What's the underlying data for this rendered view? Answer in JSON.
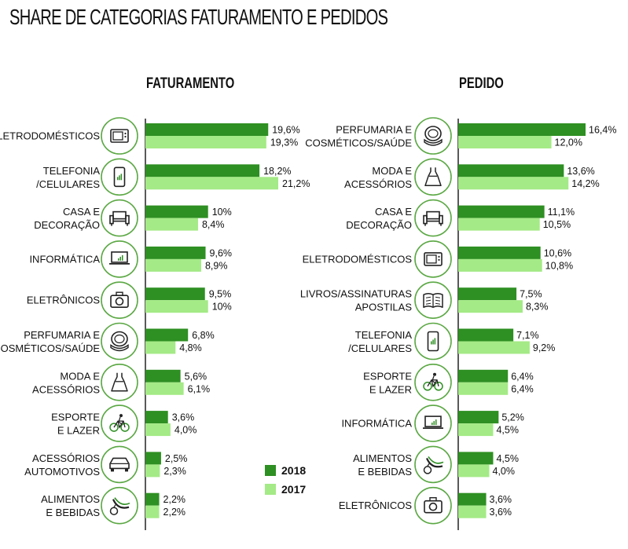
{
  "title": "SHARE DE CATEGORIAS FATURAMENTO  E PEDIDOS",
  "colors": {
    "2018": "#2e8f22",
    "2017": "#a4ea86",
    "icon": "#5ba844",
    "axis": "#222222"
  },
  "legend": [
    {
      "label": "2018",
      "color": "#2e8f22"
    },
    {
      "label": "2017",
      "color": "#a4ea86"
    }
  ],
  "chart_data": [
    {
      "type": "bar",
      "orientation": "horizontal",
      "title": "FATURAMENTO",
      "series_names": [
        "2018",
        "2017"
      ],
      "xlim": [
        0,
        25
      ],
      "categories": [
        {
          "lines": [
            "ELETRODOMÉSTICOS"
          ],
          "icon": "microwave-icon",
          "v2018": 19.6,
          "v2017": 19.3,
          "l2018": "19,6%",
          "l2017": "19,3%"
        },
        {
          "lines": [
            "TELEFONIA",
            "/CELULARES"
          ],
          "icon": "smartphone-icon",
          "v2018": 18.2,
          "v2017": 21.2,
          "l2018": "18,2%",
          "l2017": "21,2%"
        },
        {
          "lines": [
            "CASA E",
            "DECORAÇÃO"
          ],
          "icon": "sofa-icon",
          "v2018": 10,
          "v2017": 8.4,
          "l2018": "10%",
          "l2017": "8,4%"
        },
        {
          "lines": [
            "INFORMÁTICA"
          ],
          "icon": "laptop-icon",
          "v2018": 9.6,
          "v2017": 8.9,
          "l2018": "9,6%",
          "l2017": "8,9%"
        },
        {
          "lines": [
            "ELETRÔNICOS"
          ],
          "icon": "camera-icon",
          "v2018": 9.5,
          "v2017": 10,
          "l2018": "9,5%",
          "l2017": "10%"
        },
        {
          "lines": [
            "PERFUMARIA E",
            "COSMÉTICOS/SAÚDE"
          ],
          "icon": "compact-mirror-icon",
          "v2018": 6.8,
          "v2017": 4.8,
          "l2018": "6,8%",
          "l2017": "4,8%"
        },
        {
          "lines": [
            "MODA E",
            "ACESSÓRIOS"
          ],
          "icon": "dress-icon",
          "v2018": 5.6,
          "v2017": 6.1,
          "l2018": "5,6%",
          "l2017": "6,1%"
        },
        {
          "lines": [
            "ESPORTE",
            "E LAZER"
          ],
          "icon": "bicycle-icon",
          "v2018": 3.6,
          "v2017": 4.0,
          "l2018": "3,6%",
          "l2017": "4,0%"
        },
        {
          "lines": [
            "ACESSÓRIOS",
            "AUTOMOTIVOS"
          ],
          "icon": "car-icon",
          "v2018": 2.5,
          "v2017": 2.3,
          "l2018": "2,5%",
          "l2017": "2,3%"
        },
        {
          "lines": [
            "ALIMENTOS",
            "E BEBIDAS"
          ],
          "icon": "fruits-icon",
          "v2018": 2.2,
          "v2017": 2.2,
          "l2018": "2,2%",
          "l2017": "2,2%"
        }
      ]
    },
    {
      "type": "bar",
      "orientation": "horizontal",
      "title": "PEDIDO",
      "series_names": [
        "2018",
        "2017"
      ],
      "xlim": [
        0,
        19.5
      ],
      "categories": [
        {
          "lines": [
            "PERFUMARIA E",
            "COSMÉTICOS/SAÚDE"
          ],
          "icon": "compact-mirror-icon",
          "v2018": 16.4,
          "v2017": 12.0,
          "l2018": "16,4%",
          "l2017": "12,0%"
        },
        {
          "lines": [
            "MODA E",
            "ACESSÓRIOS"
          ],
          "icon": "dress-icon",
          "v2018": 13.6,
          "v2017": 14.2,
          "l2018": "13,6%",
          "l2017": "14,2%"
        },
        {
          "lines": [
            "CASA E",
            "DECORAÇÃO"
          ],
          "icon": "sofa-icon",
          "v2018": 11.1,
          "v2017": 10.5,
          "l2018": "11,1%",
          "l2017": "10,5%"
        },
        {
          "lines": [
            "ELETRODOMÉSTICOS"
          ],
          "icon": "microwave-icon",
          "v2018": 10.6,
          "v2017": 10.8,
          "l2018": "10,6%",
          "l2017": "10,8%"
        },
        {
          "lines": [
            "LIVROS/ASSINATURAS",
            "APOSTILAS"
          ],
          "icon": "book-icon",
          "v2018": 7.5,
          "v2017": 8.3,
          "l2018": "7,5%",
          "l2017": "8,3%"
        },
        {
          "lines": [
            "TELEFONIA",
            "/CELULARES"
          ],
          "icon": "smartphone-icon",
          "v2018": 7.1,
          "v2017": 9.2,
          "l2018": "7,1%",
          "l2017": "9,2%"
        },
        {
          "lines": [
            "ESPORTE",
            "E LAZER"
          ],
          "icon": "bicycle-icon",
          "v2018": 6.4,
          "v2017": 6.4,
          "l2018": "6,4%",
          "l2017": "6,4%"
        },
        {
          "lines": [
            "INFORMÁTICA"
          ],
          "icon": "laptop-icon",
          "v2018": 5.2,
          "v2017": 4.5,
          "l2018": "5,2%",
          "l2017": "4,5%"
        },
        {
          "lines": [
            "ALIMENTOS",
            "E BEBIDAS"
          ],
          "icon": "fruits-icon",
          "v2018": 4.5,
          "v2017": 4.0,
          "l2018": "4,5%",
          "l2017": "4,0%"
        },
        {
          "lines": [
            "ELETRÔNICOS"
          ],
          "icon": "camera-icon",
          "v2018": 3.6,
          "v2017": 3.6,
          "l2018": "3,6%",
          "l2017": "3,6%"
        }
      ]
    }
  ]
}
